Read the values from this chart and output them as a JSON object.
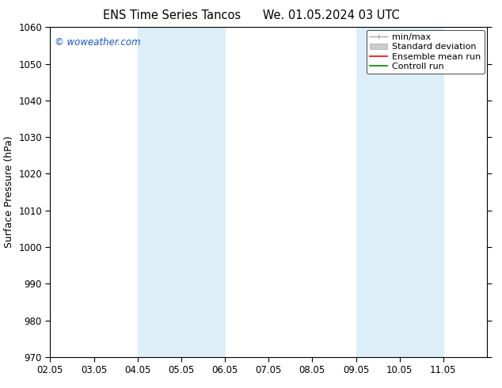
{
  "title": "ENS Time Series Tancos",
  "title2": "We. 01.05.2024 03 UTC",
  "ylabel": "Surface Pressure (hPa)",
  "ylim": [
    970,
    1060
  ],
  "yticks": [
    970,
    980,
    990,
    1000,
    1010,
    1020,
    1030,
    1040,
    1050,
    1060
  ],
  "xlim": [
    0,
    10
  ],
  "xtick_labels": [
    "02.05",
    "03.05",
    "04.05",
    "05.05",
    "06.05",
    "07.05",
    "08.05",
    "09.05",
    "10.05",
    "11.05"
  ],
  "xtick_positions": [
    0,
    1,
    2,
    3,
    4,
    5,
    6,
    7,
    8,
    9
  ],
  "shaded_bands": [
    {
      "xmin": 2,
      "xmax": 3,
      "color": "#ddeef8"
    },
    {
      "xmin": 3,
      "xmax": 4,
      "color": "#ddeef8"
    },
    {
      "xmin": 7,
      "xmax": 9,
      "color": "#ddeef8"
    }
  ],
  "legend_items": [
    {
      "label": "min/max",
      "color": "#aaaaaa",
      "lw": 1.0,
      "style": "errorbar"
    },
    {
      "label": "Standard deviation",
      "color": "#cccccc",
      "lw": 5,
      "style": "band"
    },
    {
      "label": "Ensemble mean run",
      "color": "#ff0000",
      "lw": 1.2,
      "style": "line"
    },
    {
      "label": "Controll run",
      "color": "#008000",
      "lw": 1.2,
      "style": "line"
    }
  ],
  "copyright_text": "© woweather.com",
  "copyright_color": "#1155cc",
  "bg_color": "#ffffff",
  "plot_bg_color": "#ffffff",
  "title_fontsize": 10.5,
  "ylabel_fontsize": 9,
  "tick_fontsize": 8.5,
  "legend_fontsize": 8
}
